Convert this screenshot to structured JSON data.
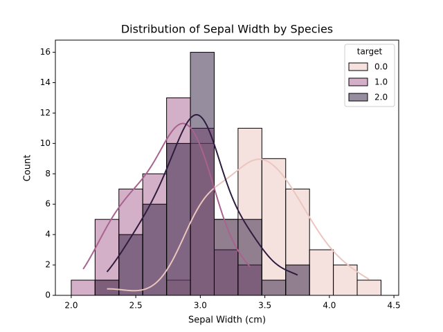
{
  "chart_data": {
    "type": "histogram",
    "title": "Distribution of Sepal Width by Species",
    "x_label": "Sepal Width (cm)",
    "y_label": "Count",
    "legend_title": "target",
    "legend": "upper right",
    "bins": [
      2.0,
      2.1846,
      2.3692,
      2.5538,
      2.7385,
      2.9231,
      3.1077,
      3.2923,
      3.4769,
      3.6615,
      3.8462,
      4.0308,
      4.2154,
      4.4
    ],
    "series": [
      {
        "name": "0.0",
        "color": "#ebc6bf",
        "values": [
          0,
          1,
          0,
          0,
          1,
          10,
          5,
          11,
          9,
          7,
          3,
          2,
          1
        ]
      },
      {
        "name": "1.0",
        "color": "#a8628f",
        "values": [
          1,
          5,
          7,
          8,
          13,
          11,
          3,
          2,
          0,
          0,
          0,
          0,
          0
        ]
      },
      {
        "name": "2.0",
        "color": "#2e1c3f",
        "values": [
          0,
          1,
          4,
          6,
          10,
          16,
          5,
          5,
          1,
          2,
          0,
          0,
          0
        ]
      }
    ],
    "xlim": [
      1.877,
      4.537
    ],
    "ylim": [
      0,
      16.8
    ],
    "xticks": [
      {
        "value": 2,
        "label": "2.0"
      },
      {
        "value": 2.5,
        "label": "2.5"
      },
      {
        "value": 3,
        "label": "3.0"
      },
      {
        "value": 3.5,
        "label": "3.5"
      },
      {
        "value": 4,
        "label": "4.0"
      },
      {
        "value": 4.5,
        "label": "4.5"
      }
    ],
    "yticks": [
      0,
      2,
      4,
      6,
      8,
      10,
      12,
      14,
      16
    ],
    "kde": true
  }
}
